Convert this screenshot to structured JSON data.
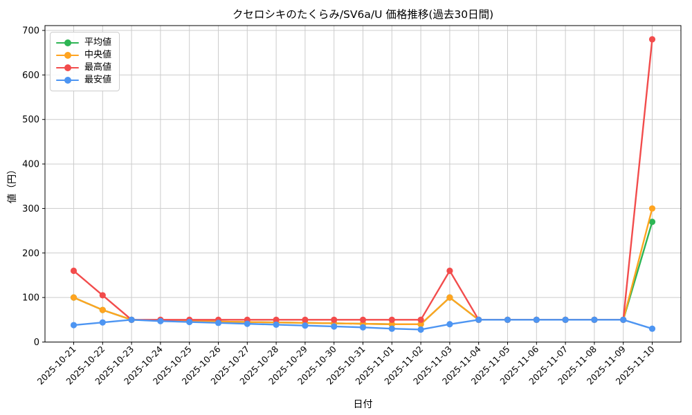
{
  "chart_data": {
    "type": "line",
    "title": "クセロシキのたくらみ/SV6a/U 価格推移(過去30日間)",
    "xlabel": "日付",
    "ylabel": "値（円）",
    "ylim": [
      0,
      711
    ],
    "yticks": [
      0,
      100,
      200,
      300,
      400,
      500,
      600,
      700
    ],
    "grid": true,
    "legend_position": "upper-left",
    "categories": [
      "2025-10-21",
      "2025-10-22",
      "2025-10-23",
      "2025-10-24",
      "2025-10-25",
      "2025-10-26",
      "2025-10-27",
      "2025-10-28",
      "2025-10-29",
      "2025-10-30",
      "2025-10-31",
      "2025-11-01",
      "2025-11-02",
      "2025-11-03",
      "2025-11-04",
      "2025-11-05",
      "2025-11-06",
      "2025-11-07",
      "2025-11-08",
      "2025-11-09",
      "2025-11-10"
    ],
    "series": [
      {
        "key": "average",
        "name": "平均値",
        "color": "#2db554",
        "values": [
          100,
          72,
          50,
          48,
          47,
          46,
          45,
          44,
          43,
          42,
          41,
          40,
          40,
          100,
          50,
          50,
          50,
          50,
          50,
          50,
          270
        ]
      },
      {
        "key": "median",
        "name": "中央値",
        "color": "#ffa420",
        "values": [
          100,
          72,
          50,
          48,
          47,
          46,
          45,
          44,
          43,
          42,
          41,
          40,
          40,
          100,
          50,
          50,
          50,
          50,
          50,
          50,
          300
        ]
      },
      {
        "key": "max",
        "name": "最高値",
        "color": "#f24c4c",
        "values": [
          160,
          105,
          50,
          50,
          50,
          50,
          50,
          50,
          50,
          50,
          50,
          50,
          50,
          160,
          50,
          50,
          50,
          50,
          50,
          50,
          680
        ]
      },
      {
        "key": "min",
        "name": "最安値",
        "color": "#4d95f2",
        "values": [
          38,
          44,
          50,
          47,
          45,
          43,
          41,
          39,
          37,
          35,
          33,
          30,
          28,
          40,
          50,
          50,
          50,
          50,
          50,
          50,
          30
        ]
      }
    ],
    "colors": {
      "grid": "#cccccc",
      "axis": "#000000",
      "background": "#ffffff"
    }
  }
}
